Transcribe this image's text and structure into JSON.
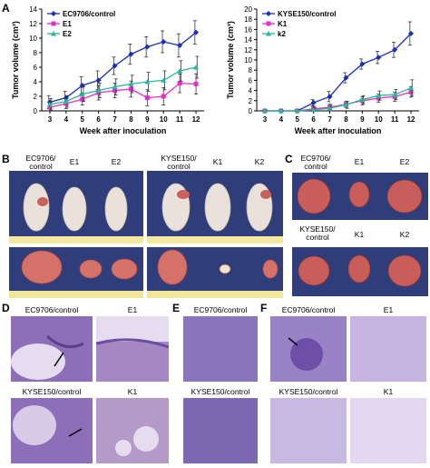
{
  "panel_labels": {
    "a": "A",
    "b": "B",
    "c": "C",
    "d": "D",
    "e": "E",
    "f": "F"
  },
  "chart_data": [
    {
      "type": "line",
      "xlabel": "Week after inoculation",
      "ylabel": "Tumor volume (cm³)",
      "ylim": [
        0,
        14
      ],
      "yticks": [
        0,
        2,
        4,
        6,
        8,
        10,
        12,
        14
      ],
      "x": [
        3,
        4,
        5,
        6,
        7,
        8,
        9,
        10,
        11,
        12
      ],
      "legend_position": "top-left",
      "series": [
        {
          "name": "EC9706/control",
          "color": "#1a2fb8",
          "marker": "diamond",
          "values": [
            1.2,
            1.8,
            3.5,
            4.2,
            6.2,
            7.8,
            8.8,
            9.5,
            9.0,
            10.8
          ],
          "errors": [
            0.9,
            0.9,
            1.2,
            1.3,
            1.2,
            1.4,
            1.4,
            1.5,
            1.6,
            1.6
          ]
        },
        {
          "name": "E1",
          "color": "#e030c8",
          "marker": "square",
          "values": [
            0.5,
            1.0,
            1.6,
            2.5,
            2.8,
            3.0,
            1.8,
            2.0,
            3.8,
            3.7
          ],
          "errors": [
            0.6,
            0.7,
            0.8,
            1.0,
            1.0,
            1.1,
            1.1,
            1.2,
            1.3,
            1.4
          ]
        },
        {
          "name": "E2",
          "color": "#2bb59a",
          "marker": "triangle",
          "values": [
            0.9,
            1.3,
            2.3,
            2.8,
            3.3,
            3.7,
            4.0,
            4.2,
            5.5,
            6.0
          ],
          "errors": [
            0.8,
            0.8,
            1.0,
            1.0,
            1.1,
            1.2,
            1.3,
            1.3,
            1.4,
            1.5
          ]
        }
      ]
    },
    {
      "type": "line",
      "xlabel": "Week after inoculation",
      "ylabel": "Tumor volume (cm³)",
      "ylim": [
        0,
        20
      ],
      "yticks": [
        0,
        2,
        4,
        6,
        8,
        10,
        12,
        14,
        16,
        18,
        20
      ],
      "x": [
        3,
        4,
        5,
        6,
        7,
        8,
        9,
        10,
        11,
        12
      ],
      "legend_position": "top-left",
      "series": [
        {
          "name": "KYSE150/control",
          "color": "#1a2fb8",
          "marker": "diamond",
          "values": [
            0,
            0,
            0,
            1.6,
            2.8,
            6.5,
            9.2,
            10.5,
            12.0,
            15.2
          ],
          "errors": [
            0.1,
            0.1,
            0.2,
            0.6,
            1.0,
            1.0,
            1.0,
            1.2,
            1.5,
            2.3
          ]
        },
        {
          "name": "K1",
          "color": "#e030c8",
          "marker": "square",
          "values": [
            0,
            0,
            0,
            0.4,
            0.7,
            1.3,
            2.0,
            2.5,
            2.8,
            3.7
          ],
          "errors": [
            0.1,
            0.1,
            0.2,
            0.5,
            0.6,
            0.6,
            0.8,
            0.8,
            0.9,
            1.0
          ]
        },
        {
          "name": "k2",
          "color": "#2bb59a",
          "marker": "triangle",
          "values": [
            0,
            0,
            0,
            0.2,
            0.5,
            1.2,
            2.2,
            3.0,
            3.2,
            4.5
          ],
          "errors": [
            0.1,
            0.1,
            0.2,
            0.5,
            0.6,
            0.7,
            0.8,
            0.9,
            1.0,
            1.6
          ]
        }
      ]
    }
  ],
  "panel_b": {
    "ec_caption": "EC9706/\ncontrol",
    "e1": "E1",
    "e2": "E2",
    "kyse_caption": "KYSE150/\ncontrol",
    "k1": "K1",
    "k2": "K2"
  },
  "panel_c": {
    "ec_caption": "EC9706/\ncontrol",
    "e1": "E1",
    "e2": "E2",
    "kyse_caption": "KYSE150/\ncontrol",
    "k1": "K1",
    "k2": "K2"
  },
  "panel_d": {
    "ec": "EC9706/control",
    "e1": "E1",
    "kyse": "KYSE150/control",
    "k1": "K1"
  },
  "panel_e": {
    "ec": "EC9706/control",
    "kyse": "KYSE150/control"
  },
  "panel_f": {
    "ec": "EC9706/control",
    "e1": "E1",
    "kyse": "KYSE150/control",
    "k1": "K1"
  },
  "colors": {
    "photo_bg": "#2f3d7a",
    "mouse": "#e9e1da",
    "tumor": "#c9605a",
    "lung": "#c85d5a",
    "he_bg": "#8c6fb8",
    "he_light": "#e6dcef"
  }
}
